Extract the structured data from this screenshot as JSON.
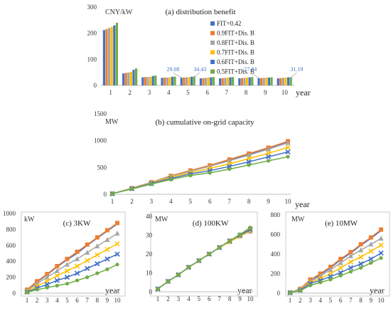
{
  "series_styles": [
    {
      "name": "FIT=0.42",
      "color": "#4472C4",
      "marker": "none"
    },
    {
      "name": "0.9FIT+Dis. B",
      "color": "#ED7D31",
      "marker": "square"
    },
    {
      "name": "0.8FIT+Dis. B",
      "color": "#A5A5A5",
      "marker": "triangle"
    },
    {
      "name": "0.7FIT+Dis. B",
      "color": "#FFC000",
      "marker": "cross"
    },
    {
      "name": "0.6FIT+Dis. B",
      "color": "#4472C4",
      "marker": "x"
    },
    {
      "name": "0.5FIT+Dis. B",
      "color": "#70AD47",
      "marker": "circle"
    }
  ],
  "chart_data": [
    {
      "id": "a",
      "type": "bar",
      "title": "(a) distribution benefit",
      "unit_label": "CNY/kW",
      "xlabel": "year",
      "categories": [
        "1",
        "2",
        "3",
        "4",
        "5",
        "6",
        "7",
        "8",
        "9",
        "10"
      ],
      "ylim": [
        0,
        300
      ],
      "yticks": [
        0,
        100,
        200,
        300
      ],
      "legend_position": "right",
      "series": [
        {
          "name": "FIT=0.42",
          "values": [
            212,
            46,
            31,
            29,
            29.08,
            27,
            27,
            27,
            27.84,
            27
          ]
        },
        {
          "name": "0.9FIT+Dis. B",
          "values": [
            216,
            48,
            32,
            30,
            30,
            28,
            28,
            28,
            28,
            28
          ]
        },
        {
          "name": "0.8FIT+Dis. B",
          "values": [
            220,
            49,
            32,
            30,
            31,
            29,
            29,
            29,
            29,
            29
          ]
        },
        {
          "name": "0.7FIT+Dis. B",
          "values": [
            224,
            52,
            33,
            31,
            32,
            30,
            30,
            30,
            30,
            30
          ]
        },
        {
          "name": "0.6FIT+Dis. B",
          "values": [
            230,
            60,
            36,
            33,
            33,
            31,
            31,
            31,
            30,
            31
          ]
        },
        {
          "name": "0.5FIT+Dis. B",
          "values": [
            240,
            65,
            38,
            34,
            34.43,
            32,
            32,
            32,
            31,
            31.19
          ]
        }
      ],
      "annotations": [
        {
          "text": "29.08",
          "category": "5",
          "series": 0,
          "value": 29.08
        },
        {
          "text": "34.43",
          "category": "5",
          "series": 5,
          "value": 34.43
        },
        {
          "text": "27.84",
          "category": "9",
          "series": 0,
          "value": 27.84
        },
        {
          "text": "31.19",
          "category": "10",
          "series": 5,
          "value": 31.19
        }
      ]
    },
    {
      "id": "b",
      "type": "line",
      "title": "(b) cumulative on-grid capacity",
      "unit_label": "MW",
      "xlabel": "year",
      "x": [
        1,
        2,
        3,
        4,
        5,
        6,
        7,
        8,
        9,
        10
      ],
      "ylim": [
        0,
        1500
      ],
      "yticks": [
        0,
        500,
        1000,
        1500
      ],
      "series": [
        {
          "name": "FIT=0.42",
          "values": [
            10,
            110,
            220,
            340,
            440,
            530,
            640,
            750,
            860,
            980
          ]
        },
        {
          "name": "0.9FIT+Dis. B",
          "values": [
            10,
            115,
            225,
            345,
            445,
            540,
            650,
            760,
            870,
            990
          ]
        },
        {
          "name": "0.8FIT+Dis. B",
          "values": [
            10,
            112,
            220,
            335,
            430,
            520,
            625,
            730,
            840,
            960
          ]
        },
        {
          "name": "0.7FIT+Dis. B",
          "values": [
            10,
            108,
            210,
            315,
            405,
            480,
            570,
            665,
            765,
            875
          ]
        },
        {
          "name": "0.6FIT+Dis. B",
          "values": [
            10,
            103,
            200,
            295,
            380,
            440,
            520,
            605,
            700,
            790
          ]
        },
        {
          "name": "0.5FIT+Dis. B",
          "values": [
            10,
            98,
            190,
            275,
            350,
            400,
            470,
            545,
            625,
            700
          ]
        }
      ]
    },
    {
      "id": "c",
      "type": "line",
      "title": "(c) 3KW",
      "unit_label": "kW",
      "xlabel": "year",
      "x": [
        1,
        2,
        3,
        4,
        5,
        6,
        7,
        8,
        9,
        10
      ],
      "ylim": [
        0,
        1000
      ],
      "yticks": [
        0,
        200,
        400,
        600,
        800,
        1000
      ],
      "series": [
        {
          "name": "FIT=0.42",
          "values": [
            40,
            140,
            230,
            330,
            420,
            500,
            600,
            690,
            780,
            870
          ]
        },
        {
          "name": "0.9FIT+Dis. B",
          "values": [
            45,
            150,
            240,
            340,
            430,
            520,
            610,
            700,
            790,
            880
          ]
        },
        {
          "name": "0.8FIT+Dis. B",
          "values": [
            35,
            120,
            200,
            280,
            360,
            430,
            510,
            590,
            670,
            750
          ]
        },
        {
          "name": "0.7FIT+Dis. B",
          "values": [
            25,
            90,
            150,
            220,
            280,
            340,
            410,
            480,
            550,
            620
          ]
        },
        {
          "name": "0.6FIT+Dis. B",
          "values": [
            15,
            65,
            110,
            160,
            200,
            250,
            310,
            370,
            430,
            490
          ]
        },
        {
          "name": "0.5FIT+Dis. B",
          "values": [
            10,
            45,
            70,
            95,
            120,
            160,
            200,
            250,
            300,
            360
          ]
        }
      ]
    },
    {
      "id": "d",
      "type": "line",
      "title": "(d) 100KW",
      "unit_label": "MW",
      "xlabel": "year",
      "x": [
        1,
        2,
        3,
        4,
        5,
        6,
        7,
        8,
        9,
        10
      ],
      "ylim": [
        0,
        40
      ],
      "yticks": [
        0,
        10,
        20,
        30,
        40
      ],
      "series": [
        {
          "name": "FIT=0.42",
          "values": [
            1.5,
            5.5,
            9,
            13,
            16.5,
            20,
            23.5,
            27,
            30,
            33
          ]
        },
        {
          "name": "0.9FIT+Dis. B",
          "values": [
            1.5,
            5.5,
            9,
            13,
            16.5,
            20,
            23.5,
            27,
            30,
            33.5
          ]
        },
        {
          "name": "0.8FIT+Dis. B",
          "values": [
            1.5,
            5.5,
            9,
            13,
            16.5,
            20,
            23.5,
            26.5,
            29.5,
            32
          ]
        },
        {
          "name": "0.7FIT+Dis. B",
          "values": [
            1.5,
            5.5,
            9,
            13,
            16.5,
            20,
            23.5,
            26.5,
            29.5,
            32.5
          ]
        },
        {
          "name": "0.6FIT+Dis. B",
          "values": [
            1.5,
            5.5,
            9,
            13,
            16.5,
            20,
            23.5,
            27,
            30,
            33
          ]
        },
        {
          "name": "0.5FIT+Dis. B",
          "values": [
            1.5,
            5.5,
            9,
            13,
            16.5,
            20,
            23.5,
            27,
            30.5,
            34
          ]
        }
      ]
    },
    {
      "id": "e",
      "type": "line",
      "title": "(e) 10MW",
      "unit_label": "MW",
      "xlabel": "year",
      "x": [
        1,
        2,
        3,
        4,
        5,
        6,
        7,
        8,
        9,
        10
      ],
      "ylim": [
        0,
        800
      ],
      "yticks": [
        0,
        200,
        400,
        600,
        800
      ],
      "series": [
        {
          "name": "FIT=0.42",
          "values": [
            5,
            40,
            120,
            190,
            260,
            340,
            410,
            490,
            560,
            640
          ]
        },
        {
          "name": "0.9FIT+Dis. B",
          "values": [
            5,
            45,
            140,
            200,
            270,
            350,
            420,
            500,
            570,
            650
          ]
        },
        {
          "name": "0.8FIT+Dis. B",
          "values": [
            5,
            40,
            120,
            175,
            240,
            310,
            380,
            440,
            500,
            560
          ]
        },
        {
          "name": "0.7FIT+Dis. B",
          "values": [
            5,
            35,
            110,
            150,
            200,
            260,
            320,
            370,
            430,
            490
          ]
        },
        {
          "name": "0.6FIT+Dis. B",
          "values": [
            5,
            30,
            100,
            130,
            170,
            210,
            260,
            300,
            350,
            410
          ]
        },
        {
          "name": "0.5FIT+Dis. B",
          "values": [
            5,
            25,
            80,
            110,
            140,
            180,
            220,
            260,
            310,
            360
          ]
        }
      ]
    }
  ]
}
